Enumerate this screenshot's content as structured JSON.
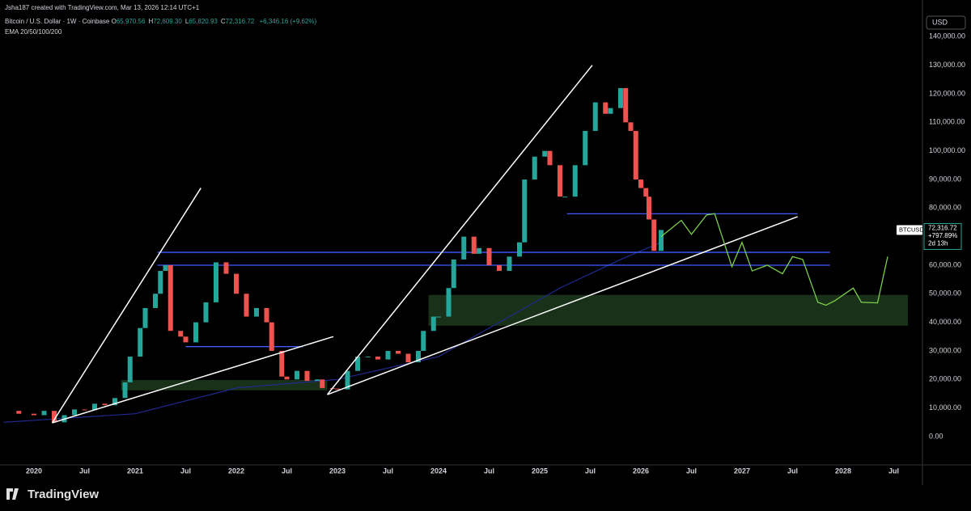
{
  "header": {
    "credit": "Jsha187 created with TradingView.com, Mar 13, 2026 12:14 UTC+1",
    "symbol": "Bitcoin / U.S. Dollar · 1W · Coinbase",
    "ohlc": [
      {
        "label": "O",
        "value": "65,970.56"
      },
      {
        "label": "H",
        "value": "72,609.30"
      },
      {
        "label": "L",
        "value": "65,820.93"
      },
      {
        "label": "C",
        "value": "72,316.72"
      }
    ],
    "change": "+6,346.16 (+9.62%)",
    "indicator": "EMA 20/50/100/200",
    "currency": "USD"
  },
  "price_label": {
    "ticker": "BTCUSD",
    "price": "72,316.72",
    "change": "+797.89%",
    "countdown": "2d 13h"
  },
  "logo": "TradingView",
  "chart_data": {
    "type": "candlestick",
    "up_color": "#26a69a",
    "down_color": "#ef5350",
    "x": [
      2019.7,
      2019.85,
      2020.0,
      2020.1,
      2020.2,
      2020.3,
      2020.4,
      2020.5,
      2020.6,
      2020.7,
      2020.8,
      2020.9,
      2020.95,
      2021.05,
      2021.1,
      2021.2,
      2021.25,
      2021.3,
      2021.35,
      2021.45,
      2021.5,
      2021.6,
      2021.7,
      2021.8,
      2021.9,
      2022.0,
      2022.1,
      2022.2,
      2022.3,
      2022.35,
      2022.45,
      2022.5,
      2022.6,
      2022.7,
      2022.8,
      2022.85,
      2022.95,
      2023.0,
      2023.1,
      2023.2,
      2023.3,
      2023.4,
      2023.5,
      2023.6,
      2023.7,
      2023.8,
      2023.85,
      2023.95,
      2024.0,
      2024.1,
      2024.15,
      2024.25,
      2024.35,
      2024.4,
      2024.5,
      2024.6,
      2024.7,
      2024.8,
      2024.85,
      2024.95,
      2025.05,
      2025.1,
      2025.2,
      2025.25,
      2025.35,
      2025.45,
      2025.55,
      2025.65,
      2025.7,
      2025.8,
      2025.85,
      2025.9,
      2025.95,
      2026.0,
      2026.05,
      2026.08,
      2026.13,
      2026.2
    ],
    "values": [
      9000,
      8000,
      7500,
      9000,
      5000,
      7500,
      9500,
      9300,
      11500,
      11000,
      13500,
      19000,
      28000,
      38000,
      45000,
      50000,
      58000,
      60000,
      37000,
      35000,
      33000,
      40000,
      47000,
      61000,
      57000,
      50000,
      42000,
      45000,
      40000,
      30000,
      21000,
      20000,
      23000,
      19500,
      20000,
      17000,
      16800,
      16500,
      23000,
      28000,
      28000,
      27000,
      30000,
      29000,
      26000,
      30000,
      37000,
      42000,
      42000,
      52000,
      62000,
      70000,
      64000,
      66000,
      60000,
      58000,
      63000,
      68000,
      90000,
      98000,
      100000,
      95000,
      84000,
      84000,
      95000,
      107000,
      117000,
      113000,
      115000,
      122000,
      110000,
      107000,
      90000,
      87000,
      84000,
      76000,
      65000,
      72316
    ],
    "ylim": [
      -8500,
      150000
    ],
    "yticks": [
      {
        "value": 0,
        "label": "0.00"
      },
      {
        "value": 10000,
        "label": "10,000.00"
      },
      {
        "value": 20000,
        "label": "20,000.00"
      },
      {
        "value": 30000,
        "label": "30,000.00"
      },
      {
        "value": 40000,
        "label": "40,000.00"
      },
      {
        "value": 50000,
        "label": "50,000.00"
      },
      {
        "value": 60000,
        "label": "60,000.00"
      },
      {
        "value": 70000,
        "label": "70,000.00"
      },
      {
        "value": 80000,
        "label": "80,000.00"
      },
      {
        "value": 90000,
        "label": "90,000.00"
      },
      {
        "value": 100000,
        "label": "100,000.00"
      },
      {
        "value": 110000,
        "label": "110,000.00"
      },
      {
        "value": 120000,
        "label": "120,000.00"
      },
      {
        "value": 130000,
        "label": "130,000.00"
      },
      {
        "value": 140000,
        "label": "140,000.00"
      }
    ],
    "xlim": [
      2019.664,
      2028.784
    ],
    "xticks": [
      2020,
      {
        "value": 2020.5,
        "label": "Jul"
      },
      2021,
      {
        "value": 2021.5,
        "label": "Jul"
      },
      2022,
      {
        "value": 2022.5,
        "label": "Jul"
      },
      2023,
      {
        "value": 2023.5,
        "label": "Jul"
      },
      2024,
      {
        "value": 2024.5,
        "label": "Jul"
      },
      2025,
      {
        "value": 2025.5,
        "label": "Jul"
      },
      2026,
      {
        "value": 2026.5,
        "label": "Jul"
      },
      2027,
      {
        "value": 2027.5,
        "label": "Jul"
      },
      2028,
      {
        "value": 2028.5,
        "label": "Jul"
      }
    ],
    "ema": {
      "color": "#1f2b8f",
      "x": [
        2019.7,
        2021.0,
        2022.0,
        2023.0,
        2024.0,
        2024.6,
        2025.2,
        2025.8,
        2026.2
      ],
      "values": [
        5000,
        8000,
        17000,
        20000,
        28000,
        40000,
        52000,
        62000,
        68000
      ]
    },
    "projection": {
      "color": "#7ccf4a",
      "x": [
        2026.2,
        2026.4,
        2026.5,
        2026.65,
        2026.73,
        2026.9,
        2027.0,
        2027.1,
        2027.25,
        2027.4,
        2027.5,
        2027.6,
        2027.75,
        2027.83,
        2027.92,
        2028.1,
        2028.18,
        2028.34,
        2028.44
      ],
      "values": [
        70000,
        75700,
        70800,
        77600,
        78000,
        59500,
        68000,
        58000,
        60000,
        57000,
        63000,
        62000,
        47000,
        46000,
        47600,
        52000,
        47000,
        46800,
        63000
      ]
    },
    "levels": [
      {
        "value": 78000,
        "x": [
          2025.27,
          2027.55
        ],
        "color": "#3f5bff"
      },
      {
        "value": 64500,
        "x": [
          2021.22,
          2027.87
        ],
        "color": "#3f5bff"
      },
      {
        "value": 60000,
        "x": [
          2021.22,
          2027.87
        ],
        "color": "#3f5bff"
      },
      {
        "value": 31500,
        "x": [
          2021.5,
          2022.66
        ],
        "color": "#3f5bff"
      }
    ],
    "zones": [
      {
        "x": [
          2023.9,
          2028.64
        ],
        "range": [
          38800,
          49600
        ],
        "color": "#1d3a1d"
      },
      {
        "x": [
          2020.86,
          2022.9
        ],
        "range": [
          16200,
          19800
        ],
        "color": "#1d3a1d"
      }
    ],
    "trendlines": [
      {
        "x": [
          2020.18,
          2021.65
        ],
        "values": [
          4800,
          87000
        ],
        "color": "#ffffff"
      },
      {
        "x": [
          2020.18,
          2022.96
        ],
        "values": [
          4800,
          35000
        ],
        "color": "#ffffff"
      },
      {
        "x": [
          2022.9,
          2025.52
        ],
        "values": [
          14700,
          130000
        ],
        "color": "#ffffff"
      },
      {
        "x": [
          2022.9,
          2027.55
        ],
        "values": [
          14700,
          77000
        ],
        "color": "#ffffff"
      }
    ]
  }
}
